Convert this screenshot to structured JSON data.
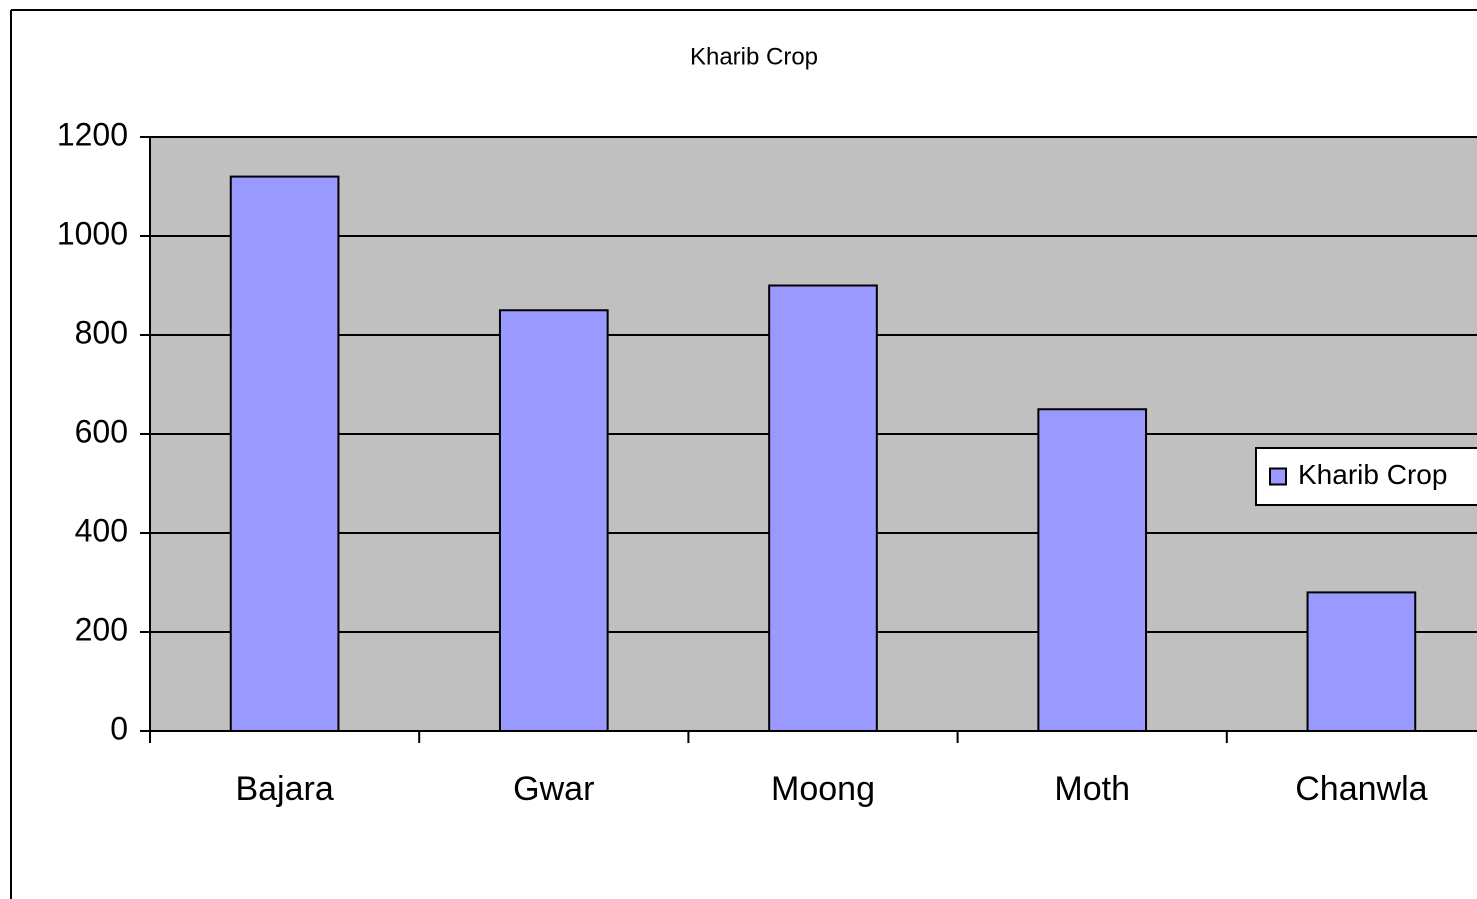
{
  "chart_data": {
    "type": "bar",
    "title": "Kharib Crop",
    "categories": [
      "Bajara",
      "Gwar",
      "Moong",
      "Moth",
      "Chanwla"
    ],
    "series": [
      {
        "name": "Kharib Crop",
        "color": "#9999ff",
        "values": [
          1120,
          850,
          900,
          650,
          280
        ]
      }
    ],
    "ylim": [
      0,
      1200
    ],
    "yticks": [
      0,
      200,
      400,
      600,
      800,
      1000,
      1200
    ],
    "grid": true,
    "legend": "right"
  }
}
